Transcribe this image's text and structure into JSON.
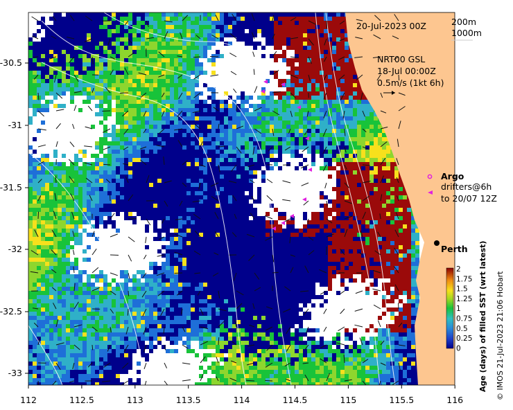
{
  "map": {
    "date_label": "20-Jul-2023 00Z",
    "contour_labels": [
      "200m",
      "1000m"
    ],
    "currents_label_lines": [
      "NRT00 GSL",
      "18-Jul 00:00Z",
      "0.5m/s (1kt 6h)"
    ],
    "argo_label": "Argo",
    "drifters_label_lines": [
      "drifters@6h",
      "to 20/07 12Z"
    ],
    "city_label": "Perth",
    "colorbar_title": "Age (days) of filled SST (wrt latest)",
    "credit": "© IMOS 21-Jul-2023 21:06 Hobart",
    "colorbar_ticks": [
      "2",
      "1.75",
      "1.5",
      "1.25",
      "1",
      "0.75",
      "0.5",
      "0.25",
      "0"
    ],
    "x_ticks": [
      "112",
      "112.5",
      "113",
      "113.5",
      "114",
      "114.5",
      "115",
      "115.5",
      "116"
    ],
    "y_ticks": [
      "-30.5",
      "-31",
      "-31.5",
      "-32",
      "-32.5",
      "-33"
    ],
    "colors": {
      "land": "#fdc690",
      "age_0": "#00008b",
      "age_025": "#1e6fd8",
      "age_05": "#2fb0c8",
      "age_075": "#18c33a",
      "age_1": "#8ed62e",
      "age_125": "#f7e01c",
      "age_15": "#f39a12",
      "age_2": "#9b0a0a",
      "argo": "#e020e0"
    }
  }
}
